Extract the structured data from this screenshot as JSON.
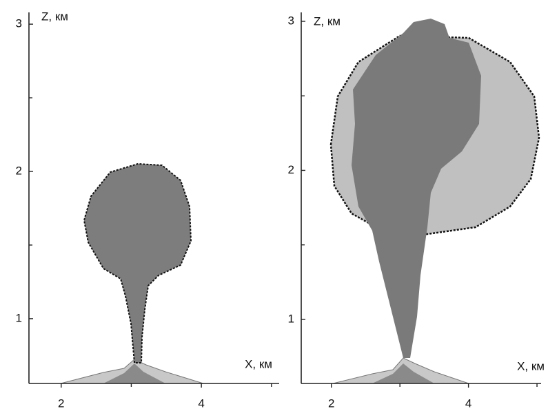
{
  "chart_data": [
    {
      "type": "plume",
      "xlabel": "X, км",
      "ylabel": "Z, км",
      "xlim": [
        1.54,
        5.11
      ],
      "ylim": [
        0.56,
        3.08
      ],
      "xticks": [
        2,
        4
      ],
      "minor_xticks": [
        3,
        5
      ],
      "yticks": [
        1,
        2,
        3
      ],
      "minor_yticks": [
        1.5,
        2.5
      ]
    },
    {
      "type": "plume",
      "xlabel": "X, км",
      "ylabel": "Z, км",
      "xlim": [
        1.56,
        5.06
      ],
      "ylim": [
        0.57,
        3.06
      ],
      "xticks": [
        2,
        4
      ],
      "minor_xticks": [
        3,
        5
      ],
      "yticks": [
        1,
        2,
        3
      ],
      "minor_yticks": [
        1.5,
        2.5
      ]
    }
  ]
}
